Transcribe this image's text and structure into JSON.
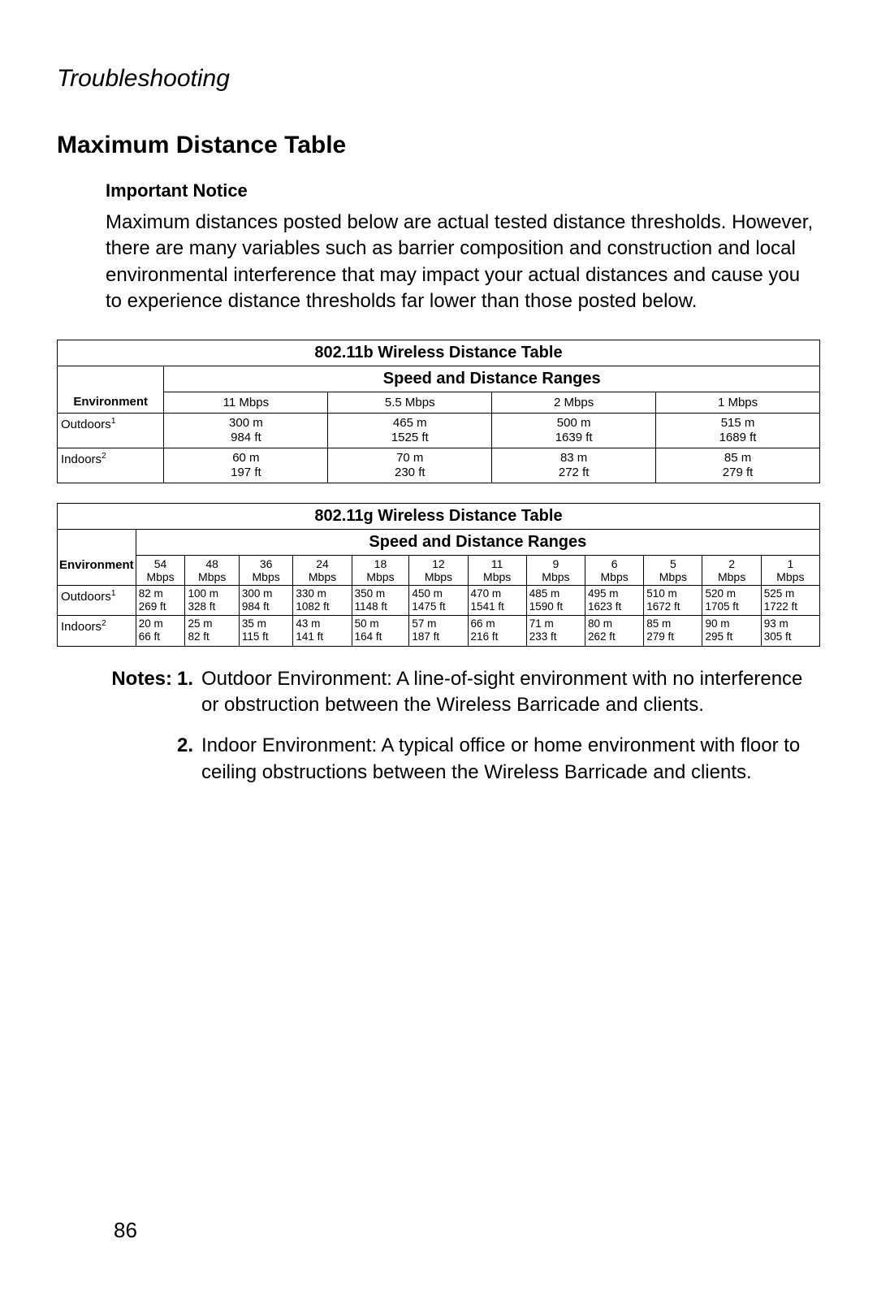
{
  "page": {
    "section_header": "Troubleshooting",
    "title": "Maximum Distance Table",
    "page_number": "86"
  },
  "notice": {
    "title": "Important Notice",
    "body": "Maximum distances posted below are actual tested distance thresholds. However, there are many variables such as barrier composition and construction and local environmental interference that may impact your actual distances and cause you to experience distance thresholds far lower than those posted below."
  },
  "table_b": {
    "title": "802.11b Wireless Distance Table",
    "subtitle": "Speed and Distance Ranges",
    "env_header": "Environment",
    "speeds": [
      "11 Mbps",
      "5.5 Mbps",
      "2 Mbps",
      "1 Mbps"
    ],
    "rows": [
      {
        "env": "Outdoors",
        "sup": "1",
        "cells": [
          {
            "m": "300 m",
            "ft": "984 ft"
          },
          {
            "m": "465 m",
            "ft": "1525 ft"
          },
          {
            "m": "500 m",
            "ft": "1639 ft"
          },
          {
            "m": "515 m",
            "ft": "1689 ft"
          }
        ]
      },
      {
        "env": "Indoors",
        "sup": "2",
        "cells": [
          {
            "m": "60 m",
            "ft": "197 ft"
          },
          {
            "m": "70 m",
            "ft": "230 ft"
          },
          {
            "m": "83 m",
            "ft": "272 ft"
          },
          {
            "m": "85 m",
            "ft": "279 ft"
          }
        ]
      }
    ]
  },
  "table_g": {
    "title": "802.11g Wireless Distance Table",
    "subtitle": "Speed and Distance Ranges",
    "env_header": "Environment",
    "speeds": [
      {
        "n": "54",
        "u": "Mbps"
      },
      {
        "n": "48",
        "u": "Mbps"
      },
      {
        "n": "36",
        "u": "Mbps"
      },
      {
        "n": "24",
        "u": "Mbps"
      },
      {
        "n": "18",
        "u": "Mbps"
      },
      {
        "n": "12",
        "u": "Mbps"
      },
      {
        "n": "11",
        "u": "Mbps"
      },
      {
        "n": "9",
        "u": "Mbps"
      },
      {
        "n": "6",
        "u": "Mbps"
      },
      {
        "n": "5",
        "u": "Mbps"
      },
      {
        "n": "2",
        "u": "Mbps"
      },
      {
        "n": "1",
        "u": "Mbps"
      }
    ],
    "rows": [
      {
        "env": "Outdoors",
        "sup": "1",
        "cells": [
          {
            "m": "82 m",
            "ft": "269 ft"
          },
          {
            "m": "100 m",
            "ft": "328 ft"
          },
          {
            "m": "300 m",
            "ft": "984 ft"
          },
          {
            "m": "330 m",
            "ft": "1082 ft"
          },
          {
            "m": "350 m",
            "ft": "1148 ft"
          },
          {
            "m": "450 m",
            "ft": "1475 ft"
          },
          {
            "m": "470 m",
            "ft": "1541 ft"
          },
          {
            "m": "485 m",
            "ft": "1590 ft"
          },
          {
            "m": "495 m",
            "ft": "1623 ft"
          },
          {
            "m": "510 m",
            "ft": "1672 ft"
          },
          {
            "m": "520 m",
            "ft": "1705 ft"
          },
          {
            "m": "525 m",
            "ft": "1722 ft"
          }
        ]
      },
      {
        "env": "Indoors",
        "sup": "2",
        "cells": [
          {
            "m": "20 m",
            "ft": "66 ft"
          },
          {
            "m": "25 m",
            "ft": "82 ft"
          },
          {
            "m": "35 m",
            "ft": "115 ft"
          },
          {
            "m": "43 m",
            "ft": "141 ft"
          },
          {
            "m": "50 m",
            "ft": "164 ft"
          },
          {
            "m": "57 m",
            "ft": "187 ft"
          },
          {
            "m": "66 m",
            "ft": "216 ft"
          },
          {
            "m": "71 m",
            "ft": "233 ft"
          },
          {
            "m": "80 m",
            "ft": "262 ft"
          },
          {
            "m": "85 m",
            "ft": "279 ft"
          },
          {
            "m": "90 m",
            "ft": "295 ft"
          },
          {
            "m": "93 m",
            "ft": "305 ft"
          }
        ]
      }
    ]
  },
  "notes": {
    "label": "Notes:",
    "items": [
      {
        "num": "1.",
        "text": "Outdoor Environment: A line-of-sight environment with no interference or obstruction between the Wireless Barricade and clients."
      },
      {
        "num": "2.",
        "text": "Indoor Environment: A typical office or home environment with floor to ceiling obstructions between the Wireless Barricade and clients."
      }
    ]
  }
}
